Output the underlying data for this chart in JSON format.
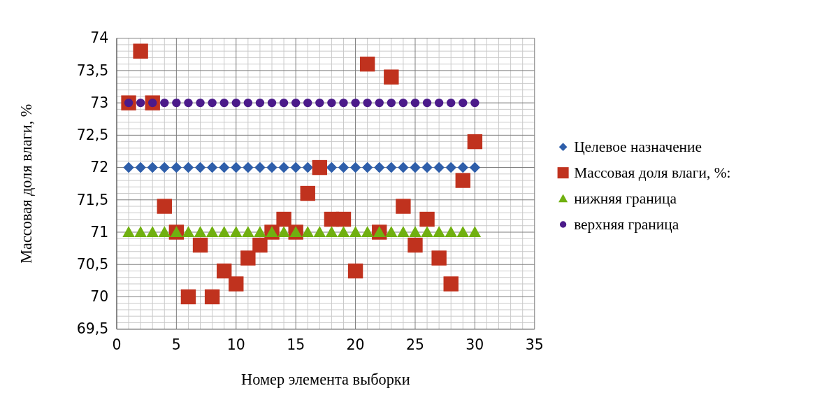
{
  "chart_data": {
    "type": "scatter",
    "xlabel": "Номер элемента выборки",
    "ylabel": "Массовая доля влаги, %",
    "x": [
      1,
      2,
      3,
      4,
      5,
      6,
      7,
      8,
      9,
      10,
      11,
      12,
      13,
      14,
      15,
      16,
      17,
      18,
      19,
      20,
      21,
      22,
      23,
      24,
      25,
      26,
      27,
      28,
      29,
      30
    ],
    "series": [
      {
        "name": "Целевое назначение",
        "color": "#2e5eaa",
        "marker": "diamond",
        "values": [
          72,
          72,
          72,
          72,
          72,
          72,
          72,
          72,
          72,
          72,
          72,
          72,
          72,
          72,
          72,
          72,
          null,
          72,
          72,
          72,
          72,
          72,
          72,
          72,
          72,
          72,
          72,
          72,
          72,
          72
        ]
      },
      {
        "name": "Массовая доля влаги, %:",
        "color": "#c0321e",
        "marker": "square",
        "values": [
          73,
          73.8,
          73,
          71.4,
          71,
          70,
          70.8,
          70,
          70.4,
          70.2,
          70.6,
          70.8,
          71,
          71.2,
          71,
          71.6,
          72,
          71.2,
          71.2,
          70.4,
          73.6,
          71,
          73.4,
          71.4,
          70.8,
          71.2,
          70.6,
          70.2,
          71.8,
          72.4
        ]
      },
      {
        "name": "нижняя граница",
        "color": "#70b010",
        "marker": "triangle",
        "values": [
          71,
          71,
          71,
          71,
          71,
          71,
          71,
          71,
          71,
          71,
          71,
          71,
          71,
          71,
          71,
          71,
          71,
          71,
          71,
          71,
          71,
          71,
          71,
          71,
          71,
          71,
          71,
          71,
          71,
          71
        ]
      },
      {
        "name": "верхняя граница",
        "color": "#4b1a8a",
        "marker": "circle",
        "values": [
          73,
          73,
          73,
          73,
          73,
          73,
          73,
          73,
          73,
          73,
          73,
          73,
          73,
          73,
          73,
          73,
          73,
          73,
          73,
          73,
          73,
          73,
          73,
          73,
          73,
          73,
          73,
          73,
          73,
          73
        ]
      }
    ],
    "xlim": [
      0,
      35
    ],
    "xticks": [
      0,
      5,
      10,
      15,
      20,
      25,
      30,
      35
    ],
    "ylim": [
      69.5,
      74
    ],
    "yticks": [
      {
        "value": 69.5,
        "label": "69,5"
      },
      {
        "value": 70,
        "label": "70"
      },
      {
        "value": 70.5,
        "label": "70,5"
      },
      {
        "value": 71,
        "label": "71"
      },
      {
        "value": 71.5,
        "label": "71,5"
      },
      {
        "value": 72,
        "label": "72"
      },
      {
        "value": 72.5,
        "label": "72,5"
      },
      {
        "value": 73,
        "label": "73"
      },
      {
        "value": 73.5,
        "label": "73,5"
      },
      {
        "value": 74,
        "label": "74"
      }
    ],
    "grid": true,
    "legend": "right"
  }
}
